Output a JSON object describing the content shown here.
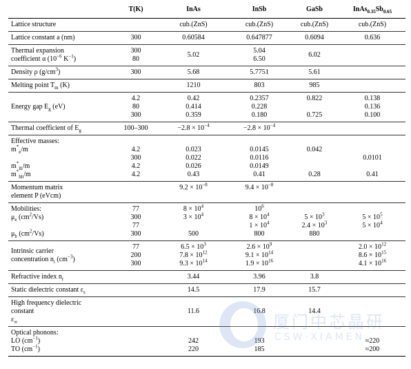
{
  "header": {
    "c1": "T(K)",
    "c2": "InAs",
    "c3": "InSb",
    "c4": "GaSb",
    "c5_base": "InAs",
    "c5_sub1": "0.35",
    "c5_mid": "Sb",
    "c5_sub2": "0.65"
  },
  "rows": {
    "structure": {
      "label": "Lattice structure",
      "c2": "cub.(ZnS)",
      "c3": "cub.(ZnS)",
      "c4": "cub.(ZnS)",
      "c5": "cub.(ZnS)"
    },
    "lattice": {
      "label": "Lattice constant a (nm)",
      "c1": "300",
      "c2": "0.60584",
      "c3": "0.647877",
      "c4": "0.6094",
      "c5": "0.636"
    },
    "thermal_exp": {
      "label1": "Thermal expansion",
      "label2_pre": "coefficient α (10",
      "label2_sup": "−6",
      "label2_mid": " K",
      "label2_sup2": "−1",
      "label2_post": ")",
      "c1": [
        "300",
        "80"
      ],
      "c2": "5.02",
      "c3": [
        "5.04",
        "6.50"
      ],
      "c4": "6.02"
    },
    "density": {
      "label_pre": "Density ρ (g/cm",
      "label_sup": "3",
      "label_post": ")",
      "c1": "300",
      "c2": "5.68",
      "c3": "5.7751",
      "c4": "5.61"
    },
    "melting": {
      "label_pre": "Melting point T",
      "label_sub": "m",
      "label_post": " (K)",
      "c2": "1210",
      "c3": "803",
      "c4": "985"
    },
    "energy_gap": {
      "label_pre": "Energy gap E",
      "label_sub": "g",
      "label_post": " (eV)",
      "c1": [
        "4.2",
        "80",
        "300"
      ],
      "c2": [
        "0.42",
        "0.414",
        "0.359"
      ],
      "c3": [
        "0.2357",
        "0.228",
        "0.180"
      ],
      "c4": [
        "0.822",
        "",
        "0.725"
      ],
      "c5": [
        "0.138",
        "0.136",
        "0.100"
      ]
    },
    "thermal_coef": {
      "label_pre": "Thermal coefficient of E",
      "label_sub": "g",
      "c1": "100–300",
      "c2_base": "−2.8 × 10",
      "c2_sup": "−4",
      "c3_base": "−2.8 × 10",
      "c3_sup": "−4"
    },
    "effective_masses": {
      "label_title": "Effective masses:",
      "me_pre": "m",
      "me_sup": "*",
      "me_sub": "e",
      "me_post": "/m",
      "mlh_pre": "m",
      "mlh_sup": "*",
      "mlh_sub": "lh",
      "mlh_post": "/m",
      "mhh_pre": "m",
      "mhh_sup": "*",
      "mhh_sub": "hh",
      "mhh_post": "/m",
      "c1": [
        "4.2",
        "300",
        "4.2",
        "4.2"
      ],
      "c2": [
        "0.023",
        "0.022",
        "0.026",
        "0.43"
      ],
      "c3": [
        "0.0145",
        "0.0116",
        "0.0149",
        "0.41"
      ],
      "c4": [
        "0.042",
        "",
        "",
        "0.28"
      ],
      "c5": [
        "",
        "0.0101",
        "",
        "0.41"
      ]
    },
    "momentum": {
      "label1": "Momentum matrix",
      "label2": "element P (eVcm)",
      "c2_base": "9.2 × 10",
      "c2_sup": "−8",
      "c3_base": "9.4 × 10",
      "c3_sup": "−8"
    },
    "mobilities": {
      "label_title": "Mobilities:",
      "mue_pre": "μ",
      "mue_sub": "e",
      "mue_mid": " (cm",
      "mue_sup": "2",
      "mue_post": "/Vs)",
      "muh_pre": "μ",
      "muh_sub": "h",
      "muh_mid": " (cm",
      "muh_sup": "2",
      "muh_post": "/Vs)",
      "c1": [
        "77",
        "300",
        "77",
        "300"
      ],
      "c2": [
        {
          "base": "8 × 10",
          "sup": "4"
        },
        {
          "base": "3 × 10",
          "sup": "4"
        },
        {
          "base": "",
          "sup": ""
        },
        {
          "base": "500",
          "sup": ""
        }
      ],
      "c3": [
        {
          "base": "10",
          "sup": "6"
        },
        {
          "base": "8 × 10",
          "sup": "4"
        },
        {
          "base": "1 × 10",
          "sup": "4"
        },
        {
          "base": "800",
          "sup": ""
        }
      ],
      "c4": [
        {
          "base": "",
          "sup": ""
        },
        {
          "base": "5 × 10",
          "sup": "3"
        },
        {
          "base": "2.4 × 10",
          "sup": "3"
        },
        {
          "base": "880",
          "sup": ""
        }
      ],
      "c5": [
        {
          "base": "",
          "sup": ""
        },
        {
          "base": "5 × 10",
          "sup": "5"
        },
        {
          "base": "5 × 10",
          "sup": "4"
        },
        {
          "base": "",
          "sup": ""
        }
      ]
    },
    "intrinsic": {
      "label1": "Intrinsic carrier",
      "label2_pre": "concentration n",
      "label2_sub": "i",
      "label2_mid": " (cm",
      "label2_sup": "−3",
      "label2_post": ")",
      "c1": [
        "77",
        "200",
        "300"
      ],
      "c2": [
        {
          "base": "6.5 × 10",
          "sup": "3"
        },
        {
          "base": "7.8 × 10",
          "sup": "12"
        },
        {
          "base": "9.3 × 10",
          "sup": "14"
        }
      ],
      "c3": [
        {
          "base": "2.6 × 10",
          "sup": "9"
        },
        {
          "base": "9.1 × 10",
          "sup": "14"
        },
        {
          "base": "1.9 × 10",
          "sup": "16"
        }
      ],
      "c5": [
        {
          "base": "2.0 × 10",
          "sup": "12"
        },
        {
          "base": "8.6 × 10",
          "sup": "15"
        },
        {
          "base": "4.1 × 10",
          "sup": "16"
        }
      ]
    },
    "refractive": {
      "label_pre": "Refractive index n",
      "label_sub": "r",
      "c2": "3.44",
      "c3": "3.96",
      "c4": "3.8"
    },
    "static_dielectric": {
      "label_pre": "Static dielectric constant ε",
      "label_sub": "s",
      "c2": "14.5",
      "c3": "17.9",
      "c4": "15.7"
    },
    "hf_dielectric": {
      "label1": "High frequency dielectric",
      "label2": "constant",
      "label3_pre": "ε",
      "label3_sub": "∞",
      "c2": "11.6",
      "c3": "16.8",
      "c4": "14.4"
    },
    "phonons": {
      "label_title": "Optical phonons:",
      "lo_pre": "LO (cm",
      "lo_sup": "−1",
      "lo_post": ")",
      "to_pre": "TO (cm",
      "to_sup": "−1",
      "to_post": ")",
      "c2": [
        "242",
        "220"
      ],
      "c3": [
        "193",
        "185"
      ],
      "c5": [
        "≈220",
        "≈200"
      ]
    }
  },
  "watermark": {
    "cn": "厦门中芯晶研",
    "en": "CSW-XIAMEN",
    "color": "#6b8fd6"
  }
}
